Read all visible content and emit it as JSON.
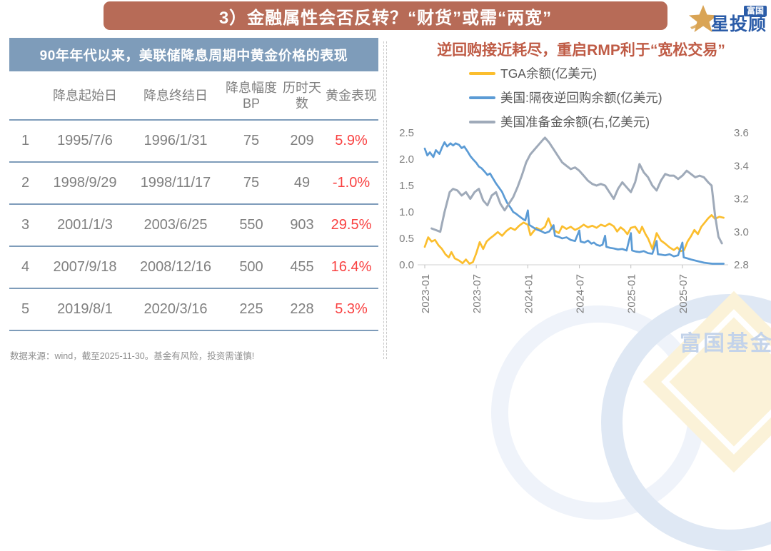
{
  "header": {
    "title": "3）金融属性会否反转？“财货”或需“两宽”"
  },
  "logo": {
    "box_text": "富国",
    "brand_text": "星投顾"
  },
  "table": {
    "title": "90年年代以来，美联储降息周期中黄金价格的表现",
    "columns": [
      "",
      "降息起始日",
      "降息终结日",
      "降息幅度BP",
      "历时天数",
      "黄金表现"
    ],
    "rows": [
      [
        "1",
        "1995/7/6",
        "1996/1/31",
        "75",
        "209",
        "5.9%"
      ],
      [
        "2",
        "1998/9/29",
        "1998/11/17",
        "75",
        "49",
        "-1.0%"
      ],
      [
        "3",
        "2001/1/3",
        "2003/6/25",
        "550",
        "903",
        "29.5%"
      ],
      [
        "4",
        "2007/9/18",
        "2008/12/16",
        "500",
        "455",
        "16.4%"
      ],
      [
        "5",
        "2019/8/1",
        "2020/3/16",
        "225",
        "228",
        "5.3%"
      ]
    ]
  },
  "footer": {
    "source_note": "数据来源：wind，截至2025-11-30。基金有风险，投资需谨慎!"
  },
  "watermark": {
    "text": "富国基金"
  },
  "colors": {
    "banner": "#b76b57",
    "table_header": "#7e9cba",
    "negative_red": "#f94141",
    "tga_yellow": "#fbbe2e",
    "rrp_blue": "#5b9bd5",
    "reserves_gray": "#9faab9",
    "brand_blue": "#2b5ca8",
    "brand_gold": "#d9a455"
  },
  "chart_data": {
    "type": "line",
    "title": "逆回购接近耗尽，重启RMP利于“宽松交易”",
    "legend_position": "top",
    "grid": false,
    "x_axis": {
      "unit": "months since 2023-01",
      "range": [
        0,
        35
      ],
      "tick_positions": [
        0,
        6,
        12,
        18,
        24,
        30
      ],
      "tick_labels": [
        "2023-01",
        "2023-07",
        "2024-01",
        "2024-07",
        "2025-01",
        "2025-07"
      ]
    },
    "left_axis": {
      "range": [
        0,
        2.5
      ],
      "ticks": [
        0.0,
        0.5,
        1.0,
        1.5,
        2.0,
        2.5
      ]
    },
    "right_axis": {
      "range": [
        2.8,
        3.6
      ],
      "ticks": [
        2.8,
        3.0,
        3.2,
        3.4,
        3.6
      ]
    },
    "series": [
      {
        "name": "TGA余额(亿美元)",
        "color": "#fbbe2e",
        "axis": "left",
        "points": [
          [
            0,
            0.34
          ],
          [
            0.4,
            0.52
          ],
          [
            0.8,
            0.44
          ],
          [
            1.2,
            0.47
          ],
          [
            1.6,
            0.37
          ],
          [
            2,
            0.3
          ],
          [
            2.4,
            0.2
          ],
          [
            2.8,
            0.14
          ],
          [
            3.1,
            0.24
          ],
          [
            3.5,
            0.12
          ],
          [
            4,
            0.08
          ],
          [
            4.4,
            0.03
          ],
          [
            4.8,
            0.1
          ],
          [
            5.2,
            0.02
          ],
          [
            5.6,
            0.05
          ],
          [
            6,
            0.22
          ],
          [
            6.4,
            0.43
          ],
          [
            6.8,
            0.3
          ],
          [
            7.2,
            0.44
          ],
          [
            7.6,
            0.5
          ],
          [
            8,
            0.55
          ],
          [
            8.5,
            0.62
          ],
          [
            9,
            0.55
          ],
          [
            9.5,
            0.64
          ],
          [
            10,
            0.7
          ],
          [
            10.5,
            0.66
          ],
          [
            11,
            0.74
          ],
          [
            11.5,
            0.8
          ],
          [
            12,
            0.76
          ],
          [
            12.3,
            0.56
          ],
          [
            12.7,
            0.64
          ],
          [
            13,
            0.7
          ],
          [
            13.5,
            0.66
          ],
          [
            14,
            0.72
          ],
          [
            14.4,
            0.88
          ],
          [
            14.8,
            0.7
          ],
          [
            15.2,
            0.64
          ],
          [
            15.6,
            0.6
          ],
          [
            16,
            0.73
          ],
          [
            16.5,
            0.68
          ],
          [
            17,
            0.72
          ],
          [
            17.5,
            0.66
          ],
          [
            18,
            0.7
          ],
          [
            18.5,
            0.76
          ],
          [
            19,
            0.71
          ],
          [
            19.5,
            0.74
          ],
          [
            20,
            0.7
          ],
          [
            20.5,
            0.76
          ],
          [
            21,
            0.73
          ],
          [
            21.5,
            0.78
          ],
          [
            22,
            0.73
          ],
          [
            22.4,
            0.63
          ],
          [
            22.8,
            0.71
          ],
          [
            23.2,
            0.66
          ],
          [
            23.6,
            0.58
          ],
          [
            24,
            0.7
          ],
          [
            24.5,
            0.72
          ],
          [
            25,
            0.6
          ],
          [
            25.3,
            0.72
          ],
          [
            25.7,
            0.58
          ],
          [
            26,
            0.5
          ],
          [
            26.5,
            0.3
          ],
          [
            27,
            0.6
          ],
          [
            27.5,
            0.46
          ],
          [
            28,
            0.4
          ],
          [
            28.5,
            0.33
          ],
          [
            29,
            0.28
          ],
          [
            29.4,
            0.33
          ],
          [
            29.8,
            0.26
          ],
          [
            30.2,
            0.28
          ],
          [
            30.6,
            0.44
          ],
          [
            31,
            0.54
          ],
          [
            31.4,
            0.66
          ],
          [
            31.8,
            0.58
          ],
          [
            32.2,
            0.72
          ],
          [
            32.6,
            0.8
          ],
          [
            33,
            0.88
          ],
          [
            33.4,
            0.94
          ],
          [
            33.8,
            0.87
          ],
          [
            34.3,
            0.91
          ],
          [
            34.8,
            0.89
          ]
        ]
      },
      {
        "name": "美国:隔夜逆回购余额(亿美元)",
        "color": "#5b9bd5",
        "axis": "left",
        "points": [
          [
            0,
            2.2
          ],
          [
            0.3,
            2.07
          ],
          [
            0.6,
            2.13
          ],
          [
            1,
            2.04
          ],
          [
            1.3,
            2.17
          ],
          [
            1.7,
            2.1
          ],
          [
            2,
            2.22
          ],
          [
            2.3,
            2.32
          ],
          [
            2.6,
            2.24
          ],
          [
            3,
            2.3
          ],
          [
            3.3,
            2.26
          ],
          [
            3.6,
            2.3
          ],
          [
            4,
            2.27
          ],
          [
            4.3,
            2.21
          ],
          [
            4.6,
            2.24
          ],
          [
            5,
            2.14
          ],
          [
            5.3,
            2.06
          ],
          [
            5.6,
            2.0
          ],
          [
            6,
            1.93
          ],
          [
            6.3,
            1.86
          ],
          [
            6.6,
            1.83
          ],
          [
            7,
            1.76
          ],
          [
            7.3,
            1.7
          ],
          [
            7.6,
            1.73
          ],
          [
            8,
            1.62
          ],
          [
            8.3,
            1.54
          ],
          [
            8.6,
            1.47
          ],
          [
            9,
            1.38
          ],
          [
            9.3,
            1.27
          ],
          [
            9.6,
            1.17
          ],
          [
            10,
            1.08
          ],
          [
            10.3,
            1.0
          ],
          [
            10.6,
            0.97
          ],
          [
            11,
            0.92
          ],
          [
            11.4,
            0.87
          ],
          [
            11.7,
            0.84
          ],
          [
            12,
            1.03
          ],
          [
            12.15,
            0.76
          ],
          [
            12.5,
            0.72
          ],
          [
            13,
            0.67
          ],
          [
            13.5,
            0.64
          ],
          [
            14,
            0.6
          ],
          [
            14.5,
            0.63
          ],
          [
            15,
            0.75
          ],
          [
            15.15,
            0.55
          ],
          [
            15.6,
            0.53
          ],
          [
            16,
            0.5
          ],
          [
            16.5,
            0.52
          ],
          [
            17,
            0.47
          ],
          [
            17.5,
            0.45
          ],
          [
            18,
            0.65
          ],
          [
            18.15,
            0.44
          ],
          [
            18.6,
            0.42
          ],
          [
            19,
            0.46
          ],
          [
            19.4,
            0.4
          ],
          [
            19.7,
            0.42
          ],
          [
            20,
            0.38
          ],
          [
            20.4,
            0.36
          ],
          [
            20.7,
            0.38
          ],
          [
            21,
            0.55
          ],
          [
            21.15,
            0.34
          ],
          [
            21.6,
            0.32
          ],
          [
            22,
            0.31
          ],
          [
            22.5,
            0.29
          ],
          [
            23,
            0.3
          ],
          [
            23.5,
            0.27
          ],
          [
            24,
            0.6
          ],
          [
            24.15,
            0.27
          ],
          [
            24.6,
            0.25
          ],
          [
            25,
            0.24
          ],
          [
            25.5,
            0.26
          ],
          [
            26,
            0.22
          ],
          [
            26.5,
            0.21
          ],
          [
            27,
            0.45
          ],
          [
            27.15,
            0.2
          ],
          [
            27.6,
            0.19
          ],
          [
            28,
            0.18
          ],
          [
            28.5,
            0.2
          ],
          [
            29,
            0.16
          ],
          [
            29.5,
            0.18
          ],
          [
            30,
            0.42
          ],
          [
            30.15,
            0.14
          ],
          [
            30.6,
            0.12
          ],
          [
            31,
            0.1
          ],
          [
            31.5,
            0.08
          ],
          [
            32,
            0.06
          ],
          [
            32.5,
            0.04
          ],
          [
            33,
            0.03
          ],
          [
            33.5,
            0.02
          ],
          [
            34,
            0.02
          ],
          [
            34.8,
            0.02
          ]
        ]
      },
      {
        "name": "美国准备金余额(右,亿美元)",
        "color": "#9faab9",
        "axis": "right",
        "points": [
          [
            0.8,
            3.02
          ],
          [
            1.3,
            3.01
          ],
          [
            1.8,
            3.0
          ],
          [
            2.3,
            3.12
          ],
          [
            2.9,
            3.24
          ],
          [
            3.3,
            3.26
          ],
          [
            3.8,
            3.25
          ],
          [
            4.3,
            3.22
          ],
          [
            4.8,
            3.24
          ],
          [
            5.3,
            3.2
          ],
          [
            5.8,
            3.24
          ],
          [
            6.3,
            3.26
          ],
          [
            6.8,
            3.19
          ],
          [
            7.3,
            3.16
          ],
          [
            7.8,
            3.22
          ],
          [
            8.3,
            3.24
          ],
          [
            8.8,
            3.17
          ],
          [
            9.3,
            3.13
          ],
          [
            9.8,
            3.17
          ],
          [
            10.3,
            3.21
          ],
          [
            10.8,
            3.27
          ],
          [
            11.3,
            3.34
          ],
          [
            11.8,
            3.42
          ],
          [
            12.3,
            3.47
          ],
          [
            12.8,
            3.5
          ],
          [
            13.3,
            3.53
          ],
          [
            13.8,
            3.56
          ],
          [
            14,
            3.57
          ],
          [
            14.5,
            3.54
          ],
          [
            15,
            3.5
          ],
          [
            15.5,
            3.46
          ],
          [
            16,
            3.42
          ],
          [
            16.5,
            3.4
          ],
          [
            17,
            3.38
          ],
          [
            17.5,
            3.39
          ],
          [
            18,
            3.37
          ],
          [
            18.5,
            3.34
          ],
          [
            19,
            3.31
          ],
          [
            19.5,
            3.29
          ],
          [
            20,
            3.28
          ],
          [
            20.5,
            3.29
          ],
          [
            21,
            3.28
          ],
          [
            21.5,
            3.24
          ],
          [
            22,
            3.2
          ],
          [
            22.5,
            3.26
          ],
          [
            23,
            3.3
          ],
          [
            23.5,
            3.27
          ],
          [
            24,
            3.24
          ],
          [
            24.5,
            3.3
          ],
          [
            25,
            3.41
          ],
          [
            25.5,
            3.36
          ],
          [
            26,
            3.33
          ],
          [
            26.5,
            3.28
          ],
          [
            27,
            3.25
          ],
          [
            27.5,
            3.31
          ],
          [
            28,
            3.35
          ],
          [
            28.5,
            3.34
          ],
          [
            29,
            3.34
          ],
          [
            29.5,
            3.32
          ],
          [
            30,
            3.34
          ],
          [
            30.5,
            3.37
          ],
          [
            31,
            3.35
          ],
          [
            31.5,
            3.33
          ],
          [
            32,
            3.34
          ],
          [
            32.5,
            3.33
          ],
          [
            33,
            3.3
          ],
          [
            33.4,
            3.28
          ],
          [
            33.8,
            3.1
          ],
          [
            34.2,
            2.97
          ],
          [
            34.6,
            2.93
          ]
        ]
      }
    ]
  }
}
